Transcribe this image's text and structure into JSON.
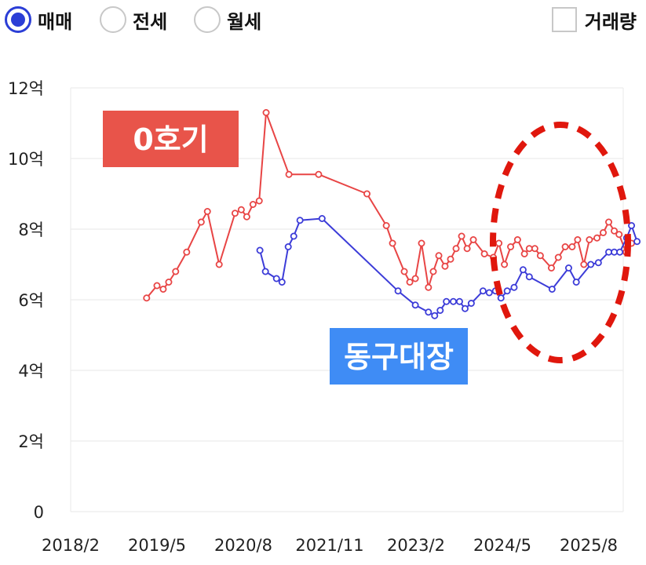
{
  "filters": {
    "radios": [
      {
        "label": "매매",
        "selected": true
      },
      {
        "label": "전세",
        "selected": false
      },
      {
        "label": "월세",
        "selected": false
      }
    ],
    "volume_checkbox": {
      "label": "거래량",
      "checked": false
    }
  },
  "colors": {
    "accent": "#2b3ed6",
    "series_red": "#e84545",
    "series_blue": "#3c3cd8",
    "annotation_red": "#e8544a",
    "annotation_blue": "#3f8cf5",
    "ellipse": "#e0170d"
  },
  "chart_data": {
    "type": "line",
    "ylim": [
      0,
      12
    ],
    "yticks": [
      {
        "v": 0,
        "label": "0"
      },
      {
        "v": 2,
        "label": "2억"
      },
      {
        "v": 4,
        "label": "4억"
      },
      {
        "v": 6,
        "label": "6억"
      },
      {
        "v": 8,
        "label": "8억"
      },
      {
        "v": 10,
        "label": "10억"
      },
      {
        "v": 12,
        "label": "12억"
      }
    ],
    "xlim": [
      2018.08,
      2026.08
    ],
    "xticks": [
      {
        "v": 2018.08,
        "label": "2018/2"
      },
      {
        "v": 2019.33,
        "label": "2019/5"
      },
      {
        "v": 2020.58,
        "label": "2020/8"
      },
      {
        "v": 2021.83,
        "label": "2021/11"
      },
      {
        "v": 2023.08,
        "label": "2023/2"
      },
      {
        "v": 2024.33,
        "label": "2024/5"
      },
      {
        "v": 2025.58,
        "label": "2025/8"
      }
    ],
    "series": [
      {
        "color": "#e84545",
        "points": [
          [
            2019.18,
            6.05
          ],
          [
            2019.33,
            6.4
          ],
          [
            2019.42,
            6.3
          ],
          [
            2019.5,
            6.5
          ],
          [
            2019.6,
            6.8
          ],
          [
            2019.76,
            7.35
          ],
          [
            2019.97,
            8.2
          ],
          [
            2020.06,
            8.5
          ],
          [
            2020.23,
            7.0
          ],
          [
            2020.46,
            8.45
          ],
          [
            2020.55,
            8.55
          ],
          [
            2020.63,
            8.35
          ],
          [
            2020.72,
            8.7
          ],
          [
            2020.81,
            8.8
          ],
          [
            2020.91,
            11.3
          ],
          [
            2021.24,
            9.55
          ],
          [
            2021.67,
            9.55
          ],
          [
            2022.37,
            9.0
          ],
          [
            2022.65,
            8.1
          ],
          [
            2022.74,
            7.6
          ],
          [
            2022.91,
            6.8
          ],
          [
            2022.99,
            6.5
          ],
          [
            2023.07,
            6.6
          ],
          [
            2023.16,
            7.6
          ],
          [
            2023.26,
            6.35
          ],
          [
            2023.33,
            6.8
          ],
          [
            2023.41,
            7.25
          ],
          [
            2023.5,
            6.95
          ],
          [
            2023.58,
            7.15
          ],
          [
            2023.66,
            7.45
          ],
          [
            2023.74,
            7.8
          ],
          [
            2023.82,
            7.45
          ],
          [
            2023.91,
            7.7
          ],
          [
            2024.07,
            7.3
          ],
          [
            2024.2,
            7.2
          ],
          [
            2024.28,
            7.6
          ],
          [
            2024.36,
            7.0
          ],
          [
            2024.45,
            7.5
          ],
          [
            2024.55,
            7.7
          ],
          [
            2024.65,
            7.3
          ],
          [
            2024.72,
            7.45
          ],
          [
            2024.8,
            7.45
          ],
          [
            2024.88,
            7.25
          ],
          [
            2025.04,
            6.9
          ],
          [
            2025.14,
            7.2
          ],
          [
            2025.24,
            7.5
          ],
          [
            2025.34,
            7.5
          ],
          [
            2025.42,
            7.7
          ],
          [
            2025.51,
            7.0
          ],
          [
            2025.59,
            7.7
          ],
          [
            2025.7,
            7.75
          ],
          [
            2025.79,
            7.9
          ],
          [
            2025.87,
            8.2
          ],
          [
            2025.95,
            7.95
          ],
          [
            2026.02,
            7.85
          ],
          [
            2026.12,
            7.35
          ],
          [
            2026.2,
            7.6
          ]
        ]
      },
      {
        "color": "#3c3cd8",
        "points": [
          [
            2020.82,
            7.4
          ],
          [
            2020.9,
            6.8
          ],
          [
            2021.06,
            6.6
          ],
          [
            2021.14,
            6.5
          ],
          [
            2021.23,
            7.5
          ],
          [
            2021.31,
            7.8
          ],
          [
            2021.4,
            8.25
          ],
          [
            2021.72,
            8.3
          ],
          [
            2022.82,
            6.25
          ],
          [
            2023.07,
            5.85
          ],
          [
            2023.26,
            5.65
          ],
          [
            2023.35,
            5.55
          ],
          [
            2023.43,
            5.7
          ],
          [
            2023.52,
            5.95
          ],
          [
            2023.62,
            5.95
          ],
          [
            2023.71,
            5.95
          ],
          [
            2023.79,
            5.75
          ],
          [
            2023.88,
            5.9
          ],
          [
            2024.05,
            6.25
          ],
          [
            2024.14,
            6.2
          ],
          [
            2024.23,
            6.25
          ],
          [
            2024.31,
            6.05
          ],
          [
            2024.4,
            6.25
          ],
          [
            2024.5,
            6.35
          ],
          [
            2024.63,
            6.85
          ],
          [
            2024.72,
            6.65
          ],
          [
            2025.05,
            6.3
          ],
          [
            2025.29,
            6.9
          ],
          [
            2025.4,
            6.5
          ],
          [
            2025.61,
            7.0
          ],
          [
            2025.72,
            7.05
          ],
          [
            2025.87,
            7.35
          ],
          [
            2025.95,
            7.35
          ],
          [
            2026.03,
            7.35
          ],
          [
            2026.13,
            7.75
          ],
          [
            2026.2,
            8.1
          ],
          [
            2026.28,
            7.65
          ]
        ]
      }
    ],
    "annotations": [
      {
        "text": "0호기",
        "color": "#e8544a"
      },
      {
        "text": "동구대장",
        "color": "#3f8cf5"
      }
    ]
  }
}
